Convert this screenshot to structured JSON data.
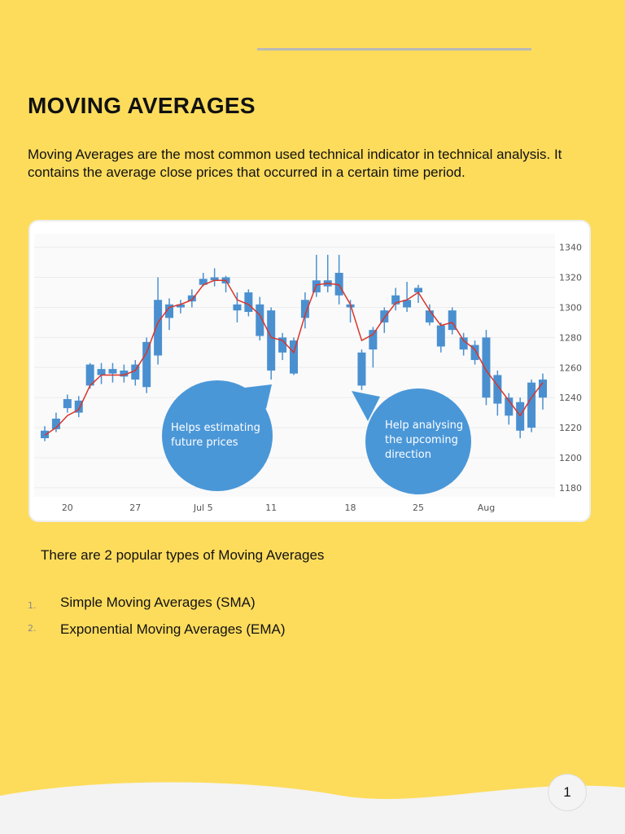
{
  "title": "MOVING AVERAGES",
  "intro": "Moving Averages are the most common used technical indicator in technical analysis. It contains the average close prices that occurred in a certain time period.",
  "chart_data": {
    "type": "candlestick",
    "categories": [
      null,
      null,
      "20",
      null,
      null,
      null,
      null,
      null,
      "27",
      null,
      null,
      null,
      null,
      null,
      "Jul 5",
      null,
      null,
      null,
      null,
      null,
      "11",
      null,
      null,
      null,
      null,
      null,
      null,
      "18",
      null,
      null,
      null,
      null,
      null,
      "25",
      null,
      null,
      null,
      null,
      null,
      "Aug",
      null,
      null,
      null,
      null,
      null
    ],
    "open": [
      1213,
      1219,
      1233,
      1230,
      1248,
      1255,
      1256,
      1254,
      1252,
      1247,
      1268,
      1293,
      1300,
      1304,
      1315,
      1318,
      1316,
      1298,
      1297,
      1281,
      1298,
      1270,
      1256,
      1293,
      1310,
      1314,
      1323,
      1302,
      1270,
      1272,
      1290,
      1302,
      1300,
      1313,
      1298,
      1288,
      1285,
      1280,
      1275,
      1280,
      1255,
      1240,
      1237,
      1220,
      1240
    ],
    "close": [
      1218,
      1226,
      1239,
      1238,
      1262,
      1259,
      1259,
      1258,
      1262,
      1277,
      1305,
      1302,
      1302,
      1308,
      1319,
      1320,
      1320,
      1302,
      1310,
      1302,
      1258,
      1280,
      1278,
      1305,
      1318,
      1318,
      1308,
      1300,
      1248,
      1285,
      1298,
      1308,
      1305,
      1310,
      1290,
      1274,
      1298,
      1272,
      1265,
      1240,
      1236,
      1228,
      1218,
      1250,
      1252
    ],
    "high": [
      1221,
      1230,
      1242,
      1241,
      1263,
      1263,
      1263,
      1262,
      1265,
      1280,
      1320,
      1306,
      1305,
      1312,
      1323,
      1326,
      1321,
      1310,
      1312,
      1307,
      1300,
      1283,
      1280,
      1310,
      1335,
      1335,
      1335,
      1305,
      1272,
      1287,
      1300,
      1313,
      1317,
      1315,
      1302,
      1290,
      1300,
      1283,
      1278,
      1285,
      1258,
      1243,
      1240,
      1252,
      1256
    ],
    "low": [
      1211,
      1217,
      1230,
      1227,
      1246,
      1249,
      1250,
      1250,
      1248,
      1243,
      1262,
      1285,
      1296,
      1300,
      1314,
      1314,
      1310,
      1290,
      1294,
      1278,
      1252,
      1265,
      1255,
      1286,
      1307,
      1310,
      1302,
      1290,
      1245,
      1260,
      1283,
      1298,
      1297,
      1303,
      1288,
      1270,
      1282,
      1268,
      1262,
      1235,
      1228,
      1222,
      1213,
      1217,
      1232
    ],
    "color": "#4a90d0",
    "moving_average": {
      "values": [
        1215,
        1220,
        1228,
        1232,
        1248,
        1255,
        1255,
        1255,
        1258,
        1270,
        1290,
        1300,
        1302,
        1305,
        1315,
        1318,
        1318,
        1305,
        1302,
        1295,
        1280,
        1278,
        1270,
        1295,
        1315,
        1316,
        1315,
        1302,
        1278,
        1282,
        1293,
        1303,
        1305,
        1310,
        1298,
        1288,
        1290,
        1278,
        1272,
        1258,
        1248,
        1238,
        1228,
        1240,
        1250
      ],
      "color": "#d9342b"
    },
    "ylim": [
      1174,
      1349
    ],
    "yticks": [
      1180,
      1200,
      1220,
      1240,
      1260,
      1280,
      1300,
      1320,
      1340
    ],
    "grid": true,
    "annotations": [
      {
        "lines": [
          "Helps estimating",
          "future prices"
        ]
      },
      {
        "lines": [
          "Help analysing",
          "the upcoming",
          "direction"
        ]
      }
    ]
  },
  "types_intro": "There are 2 popular types of Moving Averages",
  "list": [
    {
      "marker": "1.",
      "text": "Simple Moving Averages (SMA)"
    },
    {
      "marker": "2.",
      "text": "Exponential Moving Averages (EMA)"
    }
  ],
  "page_number": "1"
}
